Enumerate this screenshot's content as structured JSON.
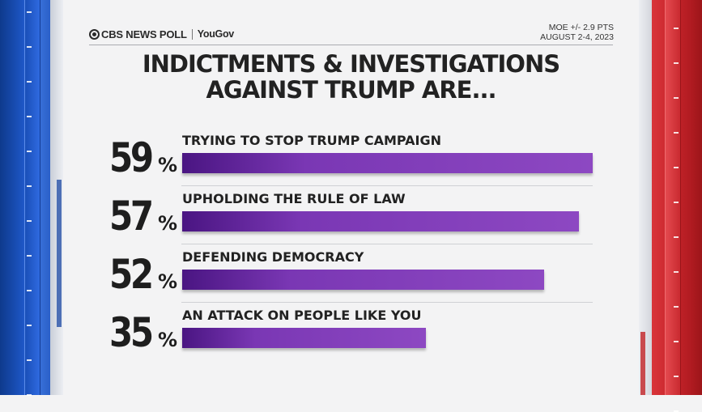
{
  "brand": {
    "cbs": "CBS NEWS POLL",
    "yougov": "YouGov"
  },
  "meta": {
    "moe": "MOE +/- 2.9 PTS",
    "dates": "AUGUST 2-4, 2023"
  },
  "colors": {
    "bar_start": "#4a1582",
    "bar_end": "#8d48c2",
    "left_side": "#1d55c4",
    "right_side": "#c8262c"
  },
  "chart_data": {
    "type": "bar",
    "orientation": "horizontal",
    "title": "INDICTMENTS & INVESTIGATIONS AGAINST TRUMP ARE...",
    "title_lines": [
      "INDICTMENTS & INVESTIGATIONS",
      "AGAINST TRUMP ARE..."
    ],
    "categories": [
      "TRYING TO STOP TRUMP CAMPAIGN",
      "UPHOLDING THE RULE OF LAW",
      "DEFENDING DEMOCRACY",
      "AN ATTACK ON PEOPLE LIKE YOU"
    ],
    "values": [
      59,
      57,
      52,
      35
    ],
    "value_labels": [
      "59",
      "57",
      "52",
      "35"
    ],
    "unit": "%",
    "xlim": [
      0,
      100
    ],
    "legend": "none",
    "grid": false
  }
}
